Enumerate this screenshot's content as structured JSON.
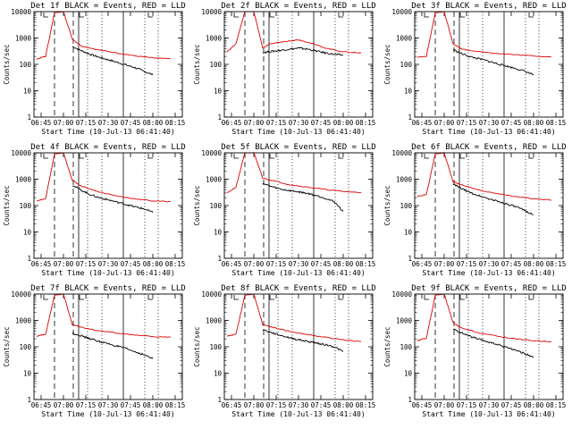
{
  "colors": {
    "events": "#000000",
    "lld": "#e00000",
    "background": "#ffffff"
  },
  "chart_data": [
    {
      "type": "line",
      "title": "Det 1f BLACK = Events, RED = LLD",
      "xlabel": "Start Time (10-Jul-13 06:41:40)",
      "ylabel": "Counts/sec",
      "yscale": "log",
      "ylim": [
        1,
        10000
      ],
      "xticks": [
        "06:45",
        "07:00",
        "07:15",
        "07:30",
        "07:45",
        "08:00",
        "08:15"
      ],
      "yticks": [
        "1",
        "10",
        "100",
        "1000",
        "10000"
      ],
      "series": [
        {
          "name": "Events",
          "color": "#000000",
          "x": [
            7.1,
            7.2,
            7.3,
            7.4,
            7.5,
            7.6,
            7.7,
            7.8,
            7.9,
            8.0
          ],
          "y": [
            480,
            330,
            240,
            185,
            150,
            120,
            95,
            75,
            55,
            40
          ]
        },
        {
          "name": "LLD",
          "color": "#e00000",
          "x": [
            6.7,
            6.8,
            6.9,
            7.0,
            7.1,
            7.2,
            7.4,
            7.6,
            7.8,
            8.0,
            8.2
          ],
          "y": [
            160,
            200,
            9000,
            10000,
            900,
            500,
            350,
            270,
            210,
            175,
            160
          ]
        }
      ]
    },
    {
      "type": "line",
      "title": "Det 2f BLACK = Events, RED = LLD",
      "xlabel": "Start Time (10-Jul-13 06:41:40)",
      "ylabel": "Counts/sec",
      "yscale": "log",
      "ylim": [
        1,
        10000
      ],
      "xticks": [
        "06:45",
        "07:00",
        "07:15",
        "07:30",
        "07:45",
        "08:00",
        "08:15"
      ],
      "yticks": [
        "1",
        "10",
        "100",
        "1000",
        "10000"
      ],
      "series": [
        {
          "name": "Events",
          "color": "#000000",
          "x": [
            7.1,
            7.2,
            7.3,
            7.4,
            7.5,
            7.6,
            7.7,
            7.8,
            7.9,
            8.0
          ],
          "y": [
            280,
            310,
            340,
            380,
            410,
            380,
            320,
            270,
            240,
            220
          ]
        },
        {
          "name": "LLD",
          "color": "#e00000",
          "x": [
            6.7,
            6.8,
            6.9,
            7.0,
            7.1,
            7.2,
            7.4,
            7.5,
            7.6,
            7.8,
            8.0,
            8.2
          ],
          "y": [
            300,
            600,
            10000,
            10000,
            420,
            620,
            780,
            860,
            700,
            420,
            300,
            270
          ]
        }
      ]
    },
    {
      "type": "line",
      "title": "Det 3f BLACK = Events, RED = LLD",
      "xlabel": "Start Time (10-Jul-13 06:41:40)",
      "ylabel": "Counts/sec",
      "yscale": "log",
      "ylim": [
        1,
        10000
      ],
      "xticks": [
        "06:45",
        "07:00",
        "07:15",
        "07:30",
        "07:45",
        "08:00",
        "08:15"
      ],
      "yticks": [
        "1",
        "10",
        "100",
        "1000",
        "10000"
      ],
      "series": [
        {
          "name": "Events",
          "color": "#000000",
          "x": [
            7.1,
            7.2,
            7.3,
            7.4,
            7.5,
            7.6,
            7.7,
            7.8,
            7.9,
            8.0
          ],
          "y": [
            360,
            250,
            190,
            160,
            130,
            105,
            85,
            70,
            55,
            40
          ]
        },
        {
          "name": "LLD",
          "color": "#e00000",
          "x": [
            6.7,
            6.8,
            6.9,
            7.0,
            7.1,
            7.2,
            7.4,
            7.6,
            7.8,
            8.0,
            8.2
          ],
          "y": [
            180,
            200,
            9000,
            10000,
            600,
            380,
            300,
            260,
            230,
            210,
            190
          ]
        }
      ]
    },
    {
      "type": "line",
      "title": "Det 4f BLACK = Events, RED = LLD",
      "xlabel": "Start Time (10-Jul-13 06:41:40)",
      "ylabel": "Counts/sec",
      "yscale": "log",
      "ylim": [
        1,
        10000
      ],
      "xticks": [
        "06:45",
        "07:00",
        "07:15",
        "07:30",
        "07:45",
        "08:00",
        "08:15"
      ],
      "yticks": [
        "1",
        "10",
        "100",
        "1000",
        "10000"
      ],
      "series": [
        {
          "name": "Events",
          "color": "#000000",
          "x": [
            7.1,
            7.2,
            7.3,
            7.4,
            7.5,
            7.6,
            7.7,
            7.8,
            7.9,
            8.0
          ],
          "y": [
            600,
            380,
            260,
            200,
            165,
            135,
            110,
            90,
            75,
            55
          ]
        },
        {
          "name": "LLD",
          "color": "#e00000",
          "x": [
            6.7,
            6.8,
            6.9,
            7.0,
            7.1,
            7.2,
            7.4,
            7.6,
            7.8,
            8.0,
            8.2
          ],
          "y": [
            150,
            180,
            9000,
            10000,
            900,
            550,
            330,
            230,
            180,
            150,
            140
          ]
        }
      ]
    },
    {
      "type": "line",
      "title": "Det 5f BLACK = Events, RED = LLD",
      "xlabel": "Start Time (10-Jul-13 06:41:40)",
      "ylabel": "Counts/sec",
      "yscale": "log",
      "ylim": [
        1,
        10000
      ],
      "xticks": [
        "06:45",
        "07:00",
        "07:15",
        "07:30",
        "07:45",
        "08:00",
        "08:15"
      ],
      "yticks": [
        "1",
        "10",
        "100",
        "1000",
        "10000"
      ],
      "series": [
        {
          "name": "Events",
          "color": "#000000",
          "x": [
            7.1,
            7.2,
            7.3,
            7.4,
            7.5,
            7.6,
            7.7,
            7.8,
            7.9,
            8.0
          ],
          "y": [
            700,
            520,
            420,
            370,
            330,
            290,
            240,
            190,
            140,
            60
          ]
        },
        {
          "name": "LLD",
          "color": "#e00000",
          "x": [
            6.7,
            6.8,
            6.9,
            7.0,
            7.1,
            7.2,
            7.4,
            7.6,
            7.8,
            8.0,
            8.2
          ],
          "y": [
            300,
            500,
            10000,
            10000,
            1100,
            900,
            620,
            500,
            410,
            340,
            310
          ]
        }
      ]
    },
    {
      "type": "line",
      "title": "Det 6f BLACK = Events, RED = LLD",
      "xlabel": "Start Time (10-Jul-13 06:41:40)",
      "ylabel": "Counts/sec",
      "yscale": "log",
      "ylim": [
        1,
        10000
      ],
      "xticks": [
        "06:45",
        "07:00",
        "07:15",
        "07:30",
        "07:45",
        "08:00",
        "08:15"
      ],
      "yticks": [
        "1",
        "10",
        "100",
        "1000",
        "10000"
      ],
      "series": [
        {
          "name": "Events",
          "color": "#000000",
          "x": [
            7.1,
            7.2,
            7.3,
            7.4,
            7.5,
            7.6,
            7.7,
            7.8,
            7.9,
            8.0
          ],
          "y": [
            650,
            430,
            300,
            230,
            180,
            145,
            115,
            90,
            65,
            45
          ]
        },
        {
          "name": "LLD",
          "color": "#e00000",
          "x": [
            6.7,
            6.8,
            6.9,
            7.0,
            7.1,
            7.2,
            7.4,
            7.6,
            7.8,
            8.0,
            8.2
          ],
          "y": [
            220,
            260,
            9000,
            10000,
            800,
            600,
            380,
            280,
            220,
            180,
            160
          ]
        }
      ]
    },
    {
      "type": "line",
      "title": "Det 7f BLACK = Events, RED = LLD",
      "xlabel": "Start Time (10-Jul-13 06:41:40)",
      "ylabel": "Counts/sec",
      "yscale": "log",
      "ylim": [
        1,
        10000
      ],
      "xticks": [
        "06:45",
        "07:00",
        "07:15",
        "07:30",
        "07:45",
        "08:00",
        "08:15"
      ],
      "yticks": [
        "1",
        "10",
        "100",
        "1000",
        "10000"
      ],
      "series": [
        {
          "name": "Events",
          "color": "#000000",
          "x": [
            7.1,
            7.2,
            7.3,
            7.4,
            7.5,
            7.6,
            7.7,
            7.8,
            7.9,
            8.0
          ],
          "y": [
            330,
            260,
            200,
            160,
            130,
            105,
            85,
            65,
            50,
            35
          ]
        },
        {
          "name": "LLD",
          "color": "#e00000",
          "x": [
            6.7,
            6.8,
            6.9,
            7.0,
            7.1,
            7.2,
            7.4,
            7.6,
            7.8,
            8.0,
            8.2
          ],
          "y": [
            250,
            300,
            9000,
            10000,
            700,
            550,
            400,
            330,
            280,
            240,
            230
          ]
        }
      ]
    },
    {
      "type": "line",
      "title": "Det 8f BLACK = Events, RED = LLD",
      "xlabel": "Start Time (10-Jul-13 06:41:40)",
      "ylabel": "Counts/sec",
      "yscale": "log",
      "ylim": [
        1,
        10000
      ],
      "xticks": [
        "06:45",
        "07:00",
        "07:15",
        "07:30",
        "07:45",
        "08:00",
        "08:15"
      ],
      "yticks": [
        "1",
        "10",
        "100",
        "1000",
        "10000"
      ],
      "series": [
        {
          "name": "Events",
          "color": "#000000",
          "x": [
            7.1,
            7.2,
            7.3,
            7.4,
            7.5,
            7.6,
            7.7,
            7.8,
            7.9,
            8.0
          ],
          "y": [
            450,
            340,
            270,
            220,
            185,
            160,
            140,
            120,
            100,
            65
          ]
        },
        {
          "name": "LLD",
          "color": "#e00000",
          "x": [
            6.7,
            6.8,
            6.9,
            7.0,
            7.1,
            7.2,
            7.4,
            7.6,
            7.8,
            8.0,
            8.2
          ],
          "y": [
            250,
            300,
            9000,
            10000,
            700,
            560,
            380,
            290,
            230,
            180,
            160
          ]
        }
      ]
    },
    {
      "type": "line",
      "title": "Det 9f BLACK = Events, RED = LLD",
      "xlabel": "Start Time (10-Jul-13 06:41:40)",
      "ylabel": "Counts/sec",
      "yscale": "log",
      "ylim": [
        1,
        10000
      ],
      "xticks": [
        "06:45",
        "07:00",
        "07:15",
        "07:30",
        "07:45",
        "08:00",
        "08:15"
      ],
      "yticks": [
        "1",
        "10",
        "100",
        "1000",
        "10000"
      ],
      "series": [
        {
          "name": "Events",
          "color": "#000000",
          "x": [
            7.1,
            7.2,
            7.3,
            7.4,
            7.5,
            7.6,
            7.7,
            7.8,
            7.9,
            8.0
          ],
          "y": [
            470,
            330,
            240,
            185,
            150,
            120,
            95,
            75,
            55,
            40
          ]
        },
        {
          "name": "LLD",
          "color": "#e00000",
          "x": [
            6.7,
            6.8,
            6.9,
            7.0,
            7.1,
            7.2,
            7.4,
            7.6,
            7.8,
            8.0,
            8.2
          ],
          "y": [
            170,
            210,
            9000,
            10000,
            800,
            500,
            330,
            250,
            200,
            170,
            155
          ]
        }
      ]
    }
  ]
}
